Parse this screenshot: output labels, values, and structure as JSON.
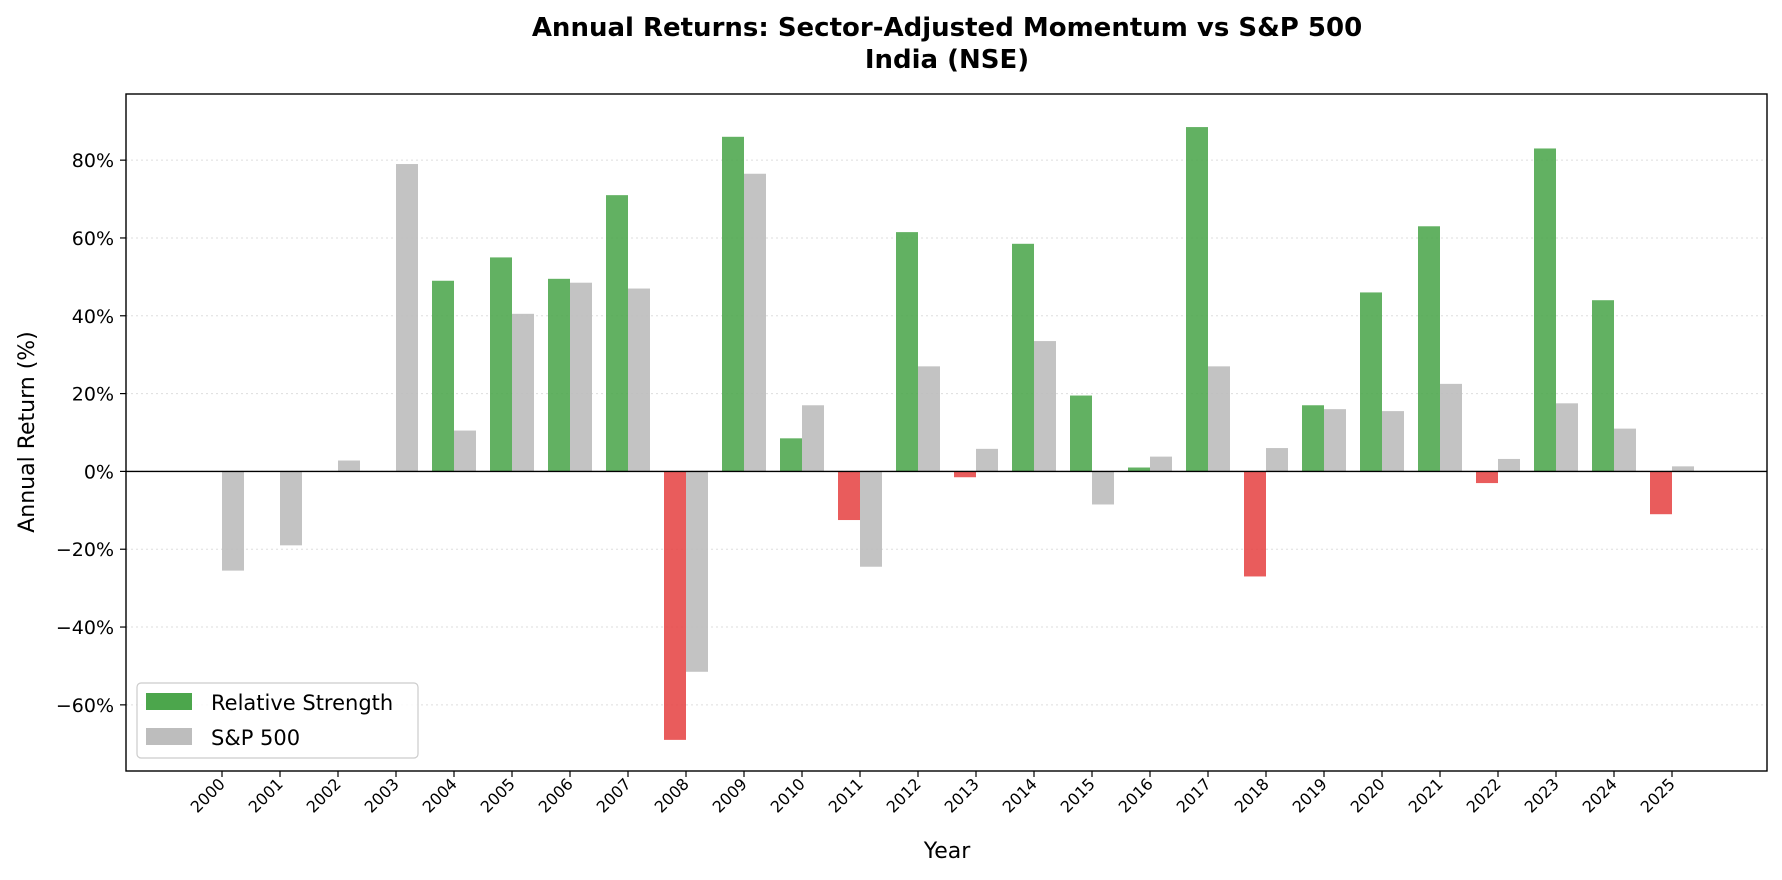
{
  "chart_data": {
    "type": "bar",
    "title": "Annual Returns: Sector-Adjusted Momentum vs S&P 500",
    "subtitle": "India (NSE)",
    "xlabel": "Year",
    "ylabel": "Annual Return (%)",
    "categories": [
      "2000",
      "2001",
      "2002",
      "2003",
      "2004",
      "2005",
      "2006",
      "2007",
      "2008",
      "2009",
      "2010",
      "2011",
      "2012",
      "2013",
      "2014",
      "2015",
      "2016",
      "2017",
      "2018",
      "2019",
      "2020",
      "2021",
      "2022",
      "2023",
      "2024",
      "2025"
    ],
    "series": [
      {
        "name": "Relative Strength",
        "values": [
          0,
          0,
          0,
          0,
          49,
          55,
          49.5,
          71,
          -69,
          86,
          8.5,
          -12.5,
          61.5,
          -1.5,
          58.5,
          19.5,
          1,
          88.5,
          -27,
          17,
          46,
          63,
          -3,
          83,
          44,
          -11
        ]
      },
      {
        "name": "S&P 500",
        "values": [
          -25.5,
          -19,
          2.8,
          79,
          10.5,
          40.5,
          48.5,
          47,
          -51.5,
          76.5,
          17,
          -24.5,
          27,
          5.8,
          33.5,
          -8.5,
          3.8,
          27,
          6,
          16,
          15.5,
          22.5,
          3.2,
          17.5,
          11,
          1.3
        ]
      }
    ],
    "ylim": [
      -77,
      97
    ],
    "yticks": [
      -60,
      -40,
      -20,
      0,
      20,
      40,
      60,
      80
    ],
    "yticklabels": [
      "−60%",
      "−40%",
      "−20%",
      "0%",
      "20%",
      "40%",
      "60%",
      "80%"
    ],
    "grid": "horizontal dotted",
    "legend_position": "lower-left",
    "colors": {
      "positive": "#4ca64c",
      "negative": "#e64545",
      "benchmark": "#bdbdbd"
    }
  }
}
